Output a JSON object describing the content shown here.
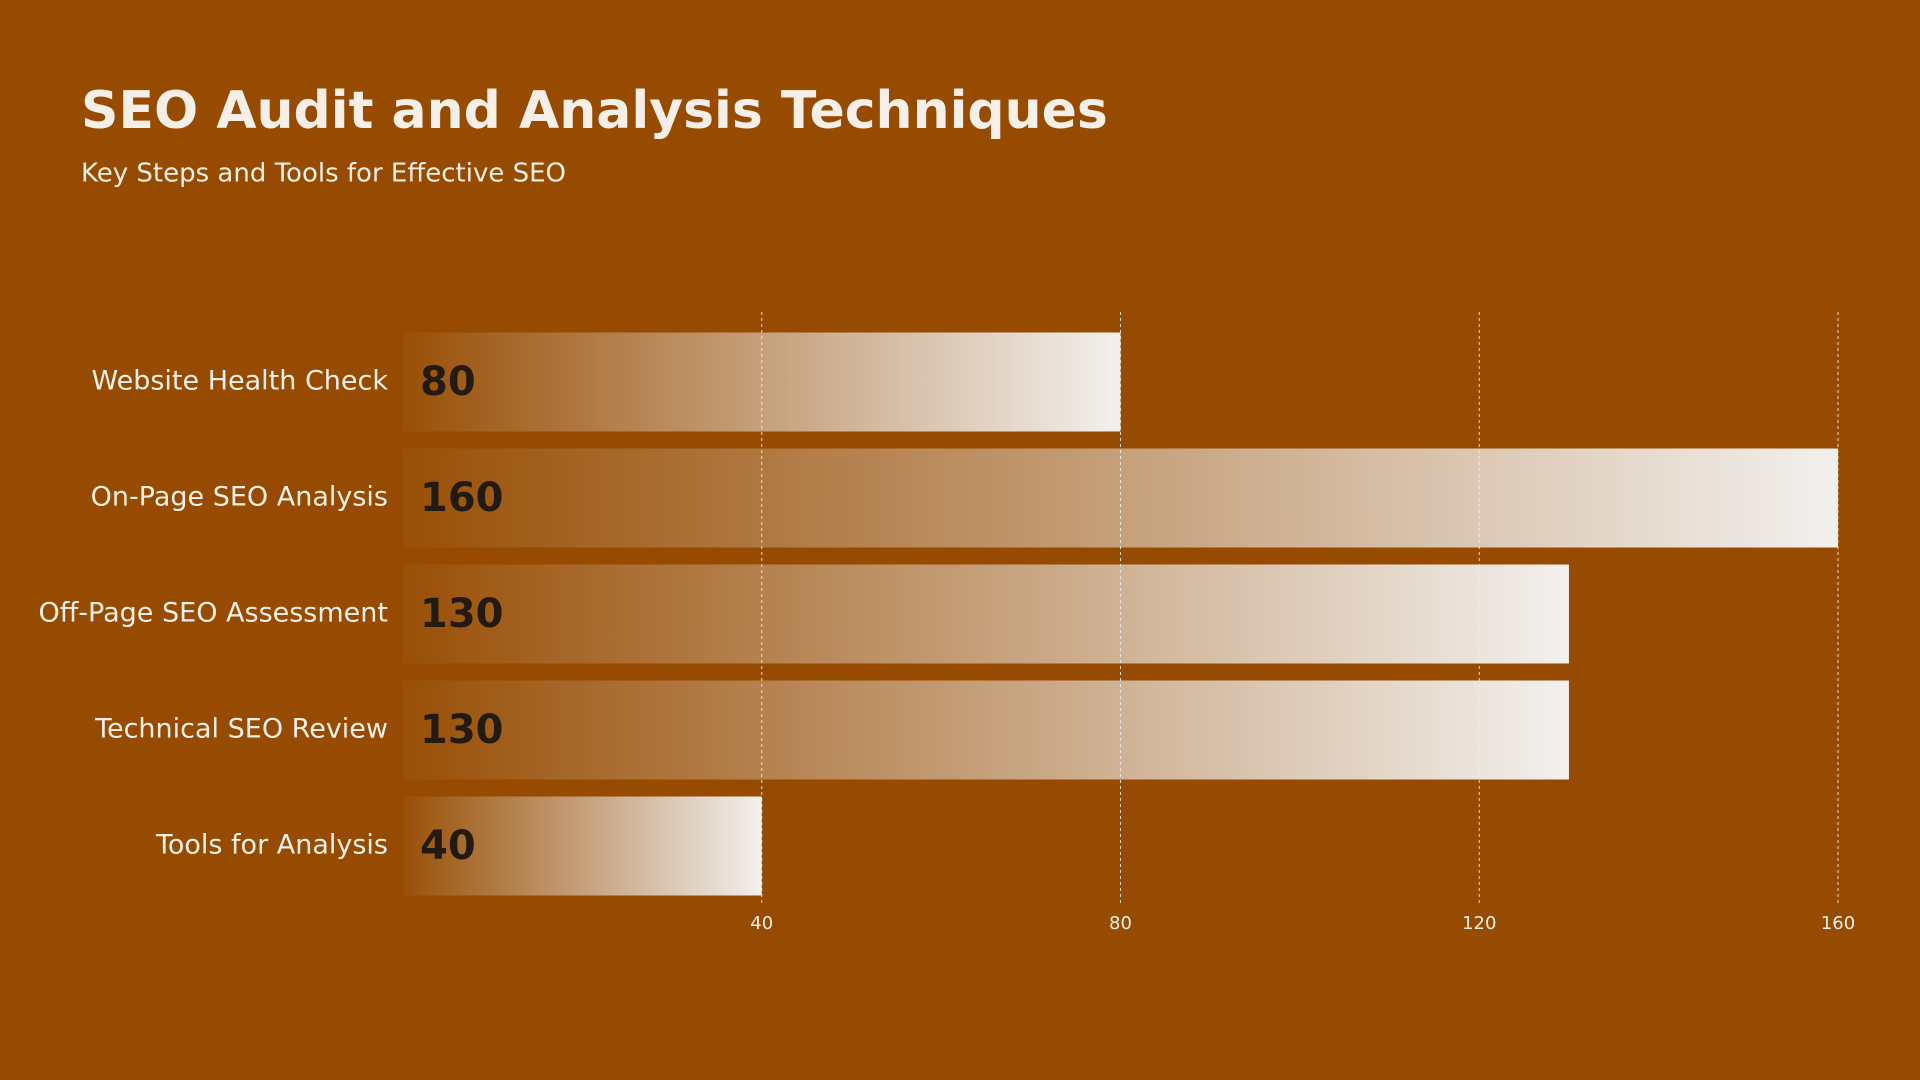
{
  "chart_data": {
    "type": "bar",
    "orientation": "horizontal",
    "title": "SEO Audit and Analysis Techniques",
    "subtitle": "Key Steps and Tools for Effective SEO",
    "categories": [
      "Website Health Check",
      "On-Page SEO Analysis",
      "Off-Page SEO Assessment",
      "Technical SEO Review",
      "Tools for Analysis"
    ],
    "values": [
      80,
      160,
      130,
      130,
      40
    ],
    "color": "#f2f0ee",
    "xlim": [
      0,
      160
    ],
    "xticks": [
      40,
      80,
      120,
      160
    ],
    "grid": true
  }
}
